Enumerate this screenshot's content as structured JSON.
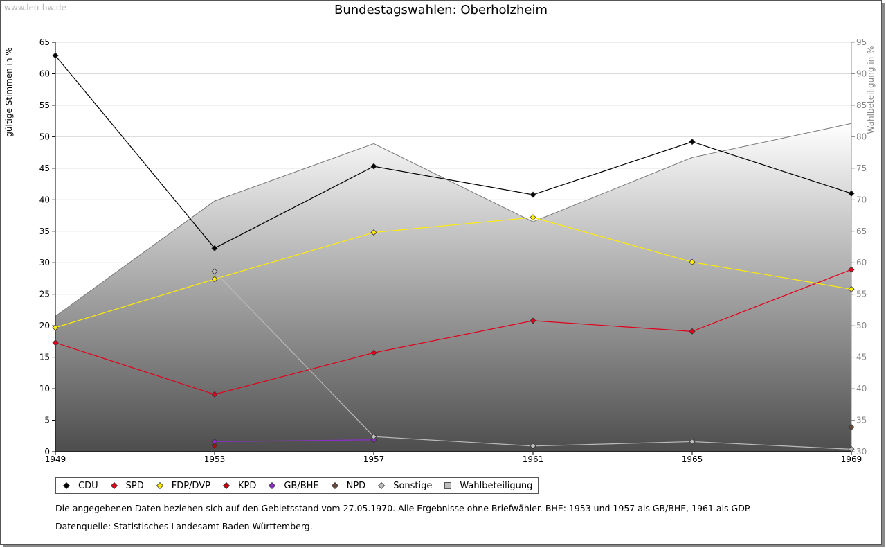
{
  "watermark": "www.leo-bw.de",
  "footnote": "Die angegebenen Daten beziehen sich auf den Gebietsstand vom 27.05.1970. Alle Ergebnisse ohne Briefwähler. BHE: 1953 und 1957 als GB/BHE, 1961 als GDP.",
  "source": "Datenquelle: Statistisches Landesamt Baden-Württemberg.",
  "chart_data": {
    "type": "line",
    "title": "Bundestagswahlen: Oberholzheim",
    "ylabel": "gültige Stimmen in %",
    "y2label": "Wahlbeteiligung in %",
    "xlabel": "",
    "ylim": [
      0,
      65
    ],
    "y2lim": [
      30,
      95
    ],
    "yticks": [
      "0",
      "5",
      "10",
      "15",
      "20",
      "25",
      "30",
      "35",
      "40",
      "45",
      "50",
      "55",
      "60",
      "65"
    ],
    "y2ticks": [
      "30",
      "35",
      "40",
      "45",
      "50",
      "55",
      "60",
      "65",
      "70",
      "75",
      "80",
      "85",
      "90",
      "95"
    ],
    "categories": [
      "1949",
      "1953",
      "1957",
      "1961",
      "1965",
      "1969"
    ],
    "area": {
      "name": "Wahlbeteiligung",
      "axis": "right",
      "values": [
        51.5,
        69.8,
        78.9,
        66.5,
        76.7,
        82.1
      ]
    },
    "series": [
      {
        "name": "CDU",
        "color": "#000000",
        "values": [
          62.9,
          32.3,
          45.3,
          40.8,
          49.2,
          41.0
        ]
      },
      {
        "name": "SPD",
        "color": "#e3001b",
        "values": [
          17.3,
          9.1,
          15.7,
          20.8,
          19.1,
          28.9
        ]
      },
      {
        "name": "FDP/DVP",
        "color": "#ffed00",
        "values": [
          19.7,
          27.4,
          34.8,
          37.2,
          30.1,
          25.8
        ]
      },
      {
        "name": "KPD",
        "color": "#c0000d",
        "values": [
          null,
          1.0,
          null,
          null,
          null,
          null
        ]
      },
      {
        "name": "GB/BHE",
        "color": "#8b2fc9",
        "values": [
          null,
          1.6,
          1.9,
          null,
          null,
          null
        ]
      },
      {
        "name": "NPD",
        "color": "#6b4a3a",
        "values": [
          null,
          null,
          null,
          null,
          null,
          3.9
        ]
      },
      {
        "name": "Sonstige",
        "color": "#bbbbbb",
        "values": [
          null,
          28.6,
          2.4,
          0.9,
          1.6,
          0.4
        ]
      }
    ],
    "legend": [
      "CDU",
      "SPD",
      "FDP/DVP",
      "KPD",
      "GB/BHE",
      "NPD",
      "Sonstige",
      "Wahlbeteiligung"
    ],
    "legend_position": "bottom-left"
  }
}
